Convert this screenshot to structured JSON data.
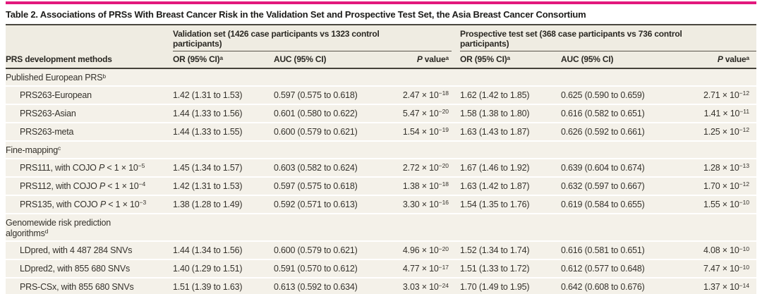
{
  "colors": {
    "accent": "#e2197d",
    "dark_rule": "#4a473f",
    "row_background": "#f4f1e9",
    "header_background": "#efece2"
  },
  "title": "Table 2. Associations of PRSs With Breast Cancer Risk in the Validation Set and Prospective Test Set, the Asia Breast Cancer Consortium",
  "table": {
    "row_label_header": "PRS development methods",
    "groups": [
      {
        "label": "Validation set (1426 case participants vs 1323 control\nparticipants)"
      },
      {
        "label": "Prospective test set (368 case participants vs 736 control\nparticipants)"
      }
    ],
    "subheaders": [
      "OR (95% CI)^{a}",
      "AUC (95% CI)",
      "{P} value^{a}",
      "OR (95% CI)^{a}",
      "AUC (95% CI)",
      "{P} value^{a}"
    ],
    "sections": [
      {
        "label": "Published European PRS^{b}",
        "rows": [
          {
            "label": "PRS263-European",
            "values": [
              "1.42 (1.31 to 1.53)",
              "0.597 (0.575 to 0.618)",
              "2.47 × 10^{−18}",
              "1.62 (1.42 to 1.85)",
              "0.625 (0.590 to 0.659)",
              "2.71 × 10^{−12}"
            ]
          },
          {
            "label": "PRS263-Asian",
            "values": [
              "1.44 (1.33 to 1.56)",
              "0.601 (0.580 to 0.622)",
              "5.47 × 10^{−20}",
              "1.58 (1.38 to 1.80)",
              "0.616 (0.582 to 0.651)",
              "1.41 × 10^{−11}"
            ]
          },
          {
            "label": "PRS263-meta",
            "values": [
              "1.44 (1.33 to 1.55)",
              "0.600 (0.579 to 0.621)",
              "1.54 × 10^{−19}",
              "1.63 (1.43 to 1.87)",
              "0.626 (0.592 to 0.661)",
              "1.25 × 10^{−12}"
            ]
          }
        ]
      },
      {
        "label": "Fine-mapping^{c}",
        "rows": [
          {
            "label": "PRS111, with COJO {P} < 1 × 10^{−5}",
            "values": [
              "1.45 (1.34 to 1.57)",
              "0.603 (0.582 to 0.624)",
              "2.72 × 10^{−20}",
              "1.67 (1.46 to 1.92)",
              "0.639 (0.604 to 0.674)",
              "1.28 × 10^{−13}"
            ]
          },
          {
            "label": "PRS112, with COJO {P} < 1 × 10^{−4}",
            "values": [
              "1.42 (1.31 to 1.53)",
              "0.597 (0.575 to 0.618)",
              "1.38 × 10^{−18}",
              "1.63 (1.42 to 1.87)",
              "0.632 (0.597 to 0.667)",
              "1.70 × 10^{−12}"
            ]
          },
          {
            "label": "PRS135, with COJO {P} < 1 × 10^{−3}",
            "values": [
              "1.38 (1.28 to 1.49)",
              "0.592 (0.571 to 0.613)",
              "3.30 × 10^{−16}",
              "1.54 (1.35 to 1.76)",
              "0.619 (0.584 to 0.655)",
              "1.55 × 10^{−10}"
            ]
          }
        ]
      },
      {
        "label": "Genomewide risk prediction\nalgorithms^{d}",
        "rows": [
          {
            "label": "LDpred, with 4 487 284 SNVs",
            "values": [
              "1.44 (1.34 to 1.56)",
              "0.600 (0.579 to 0.621)",
              "4.96 × 10^{−20}",
              "1.52 (1.34 to 1.74)",
              "0.616 (0.581 to 0.651)",
              "4.08 × 10^{−10}"
            ]
          },
          {
            "label": "LDpred2, with 855 680 SNVs",
            "values": [
              "1.40 (1.29 to 1.51)",
              "0.591 (0.570 to 0.612)",
              "4.77 × 10^{−17}",
              "1.51 (1.33 to 1.72)",
              "0.612 (0.577 to 0.648)",
              "7.47 × 10^{−10}"
            ]
          },
          {
            "label": "PRS-CSx, with 855 680 SNVs",
            "values": [
              "1.51 (1.39 to 1.63)",
              "0.613 (0.592 to 0.634)",
              "3.03 × 10^{−24}",
              "1.70 (1.49 to 1.95)",
              "0.642 (0.608 to 0.676)",
              "1.37 × 10^{−14}"
            ]
          }
        ]
      }
    ]
  }
}
